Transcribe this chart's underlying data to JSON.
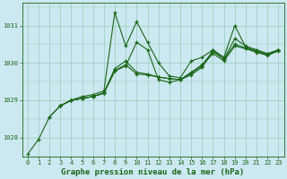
{
  "title": "Graphe pression niveau de la mer (hPa)",
  "bg_color": "#cce8f0",
  "line_color": "#1a6618",
  "grid_color": "#99ccbb",
  "xlim": [
    -0.5,
    23.5
  ],
  "ylim": [
    1027.5,
    1031.6
  ],
  "yticks": [
    1028,
    1029,
    1030,
    1031
  ],
  "xticks": [
    0,
    1,
    2,
    3,
    4,
    5,
    6,
    7,
    8,
    9,
    10,
    11,
    12,
    13,
    14,
    15,
    16,
    17,
    18,
    19,
    20,
    21,
    22,
    23
  ],
  "series": [
    {
      "x": [
        0,
        1,
        2,
        3,
        4,
        5,
        6,
        7,
        8,
        9,
        10,
        11,
        12,
        13,
        14,
        15,
        16,
        17,
        18,
        19,
        20,
        21,
        22,
        23
      ],
      "y": [
        1027.55,
        1027.95,
        1028.55,
        1028.85,
        1029.0,
        1029.1,
        1029.15,
        1029.25,
        1031.35,
        1030.45,
        1031.1,
        1030.55,
        1030.0,
        1029.65,
        1029.6,
        1030.05,
        1030.15,
        1030.35,
        1030.1,
        1030.65,
        1030.45,
        1030.35,
        1030.25,
        1030.35
      ]
    },
    {
      "x": [
        2,
        3,
        4,
        5,
        6,
        7,
        8,
        9,
        10,
        11,
        12,
        13,
        14,
        15,
        16,
        17,
        18,
        19,
        20,
        21,
        22,
        23
      ],
      "y": [
        1028.55,
        1028.85,
        1029.0,
        1029.05,
        1029.1,
        1029.2,
        1029.85,
        1030.05,
        1029.75,
        1029.7,
        1029.62,
        1029.58,
        1029.55,
        1029.75,
        1029.95,
        1030.3,
        1030.1,
        1030.5,
        1030.4,
        1030.3,
        1030.22,
        1030.35
      ]
    },
    {
      "x": [
        3,
        4,
        5,
        6,
        7,
        8,
        9,
        10,
        11,
        12,
        13,
        14,
        15,
        16,
        17,
        18,
        19,
        20,
        21,
        22,
        23
      ],
      "y": [
        1028.85,
        1029.0,
        1029.05,
        1029.1,
        1029.2,
        1029.8,
        1029.95,
        1029.7,
        1029.68,
        1029.62,
        1029.58,
        1029.55,
        1029.72,
        1029.92,
        1030.25,
        1030.05,
        1030.45,
        1030.38,
        1030.28,
        1030.2,
        1030.32
      ]
    },
    {
      "x": [
        3,
        4,
        5,
        6,
        7,
        8,
        9,
        10,
        11,
        12,
        13,
        14,
        15,
        16,
        17,
        18,
        19,
        20,
        21,
        22,
        23
      ],
      "y": [
        1028.85,
        1029.0,
        1029.05,
        1029.1,
        1029.18,
        1029.78,
        1029.92,
        1030.55,
        1030.35,
        1029.55,
        1029.48,
        1029.55,
        1029.68,
        1029.88,
        1030.35,
        1030.15,
        1031.0,
        1030.42,
        1030.32,
        1030.22,
        1030.35
      ]
    }
  ]
}
